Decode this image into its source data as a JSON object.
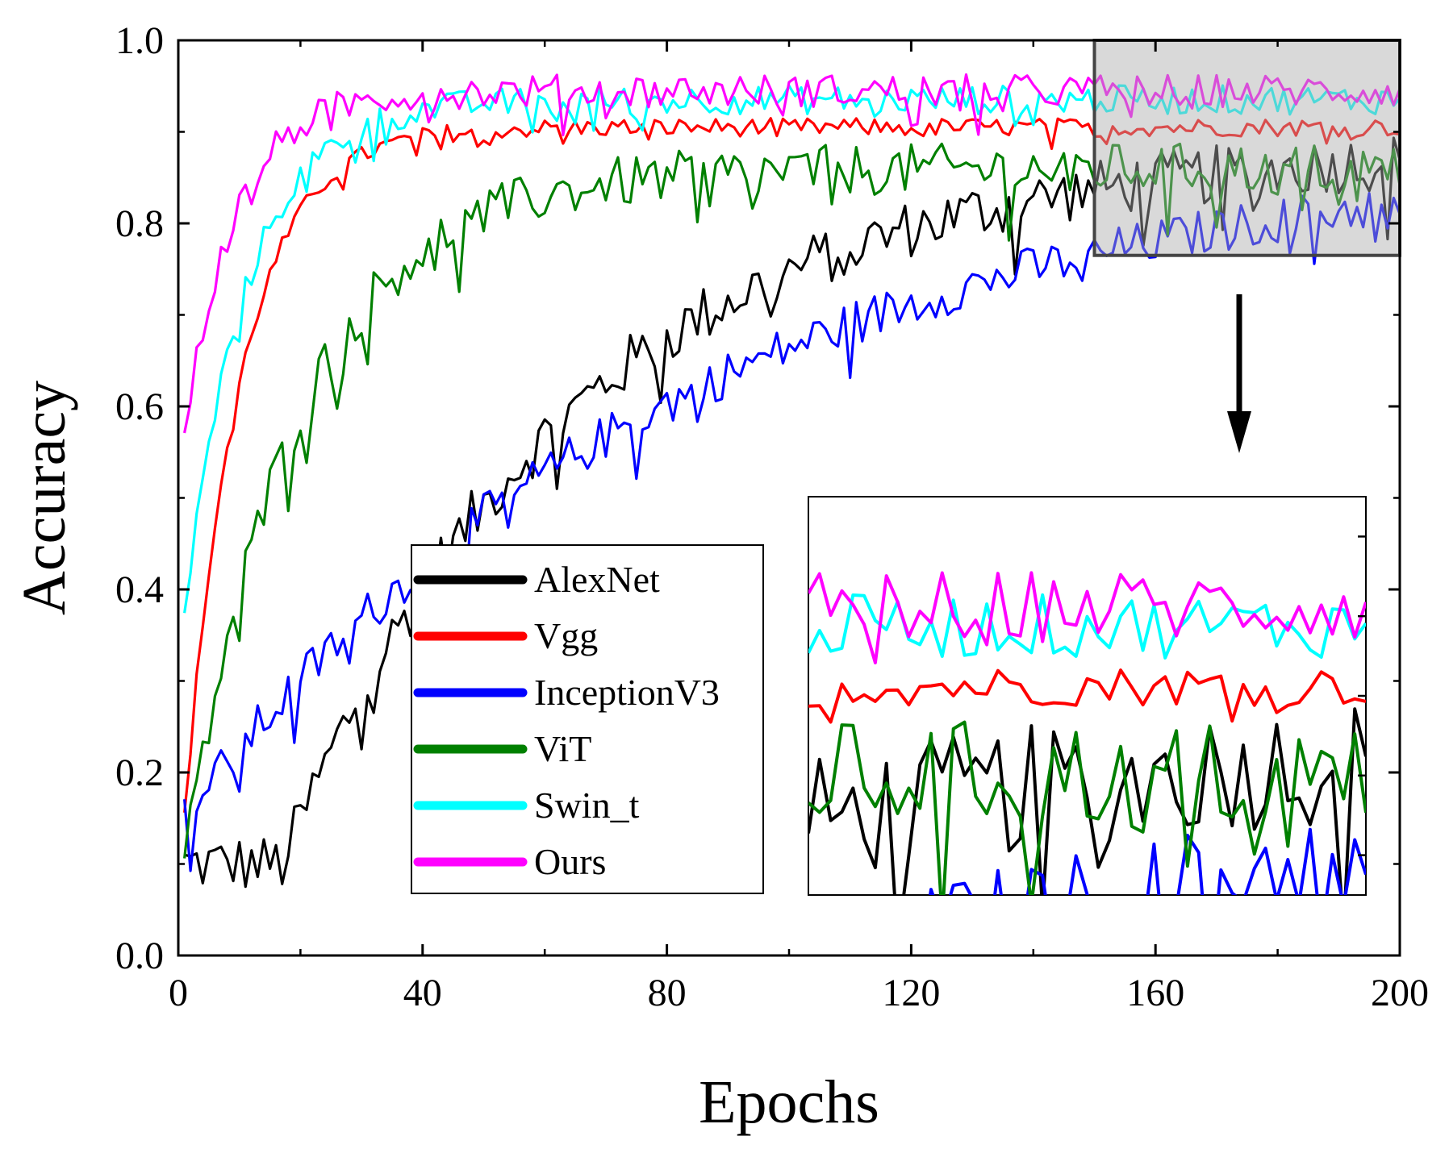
{
  "chart_data": {
    "type": "line",
    "xlabel": "Epochs",
    "ylabel": "Accuracy",
    "xlim": [
      0,
      200
    ],
    "ylim": [
      0.0,
      1.0
    ],
    "xticks": [
      0,
      40,
      80,
      120,
      160,
      200
    ],
    "xtick_labels": [
      "0",
      "40",
      "80",
      "120",
      "160",
      "200"
    ],
    "yticks": [
      0.0,
      0.2,
      0.4,
      0.6,
      0.8,
      1.0
    ],
    "ytick_labels": [
      "0.0",
      "0.2",
      "0.4",
      "0.6",
      "0.8",
      "1.0"
    ],
    "grid": false,
    "legend_position": "lower-center",
    "zoom_region": {
      "xrange": [
        150,
        200
      ],
      "yrange": [
        0.765,
        1.0
      ],
      "inset_position": "lower-right"
    },
    "series": [
      {
        "name": "AlexNet",
        "color": "#000000",
        "start": 0.1,
        "plateau": 0.885,
        "rate": 0.021,
        "delay": 16,
        "noise": 0.032
      },
      {
        "name": "Vgg",
        "color": "#ff0000",
        "start": 0.15,
        "plateau": 0.905,
        "rate": 0.11,
        "delay": 0,
        "noise": 0.01
      },
      {
        "name": "InceptionV3",
        "color": "#0000ff",
        "start": 0.15,
        "plateau": 0.89,
        "rate": 0.012,
        "delay": 0,
        "noise": 0.025
      },
      {
        "name": "ViT",
        "color": "#008000",
        "start": 0.1,
        "plateau": 0.86,
        "rate": 0.055,
        "delay": 0,
        "noise": 0.028
      },
      {
        "name": "Swin_t",
        "color": "#00ffff",
        "start": 0.37,
        "plateau": 0.935,
        "rate": 0.1,
        "delay": 0,
        "noise": 0.016
      },
      {
        "name": "Ours",
        "color": "#ff00ff",
        "start": 0.57,
        "plateau": 0.945,
        "rate": 0.12,
        "delay": 0,
        "noise": 0.018
      }
    ]
  }
}
